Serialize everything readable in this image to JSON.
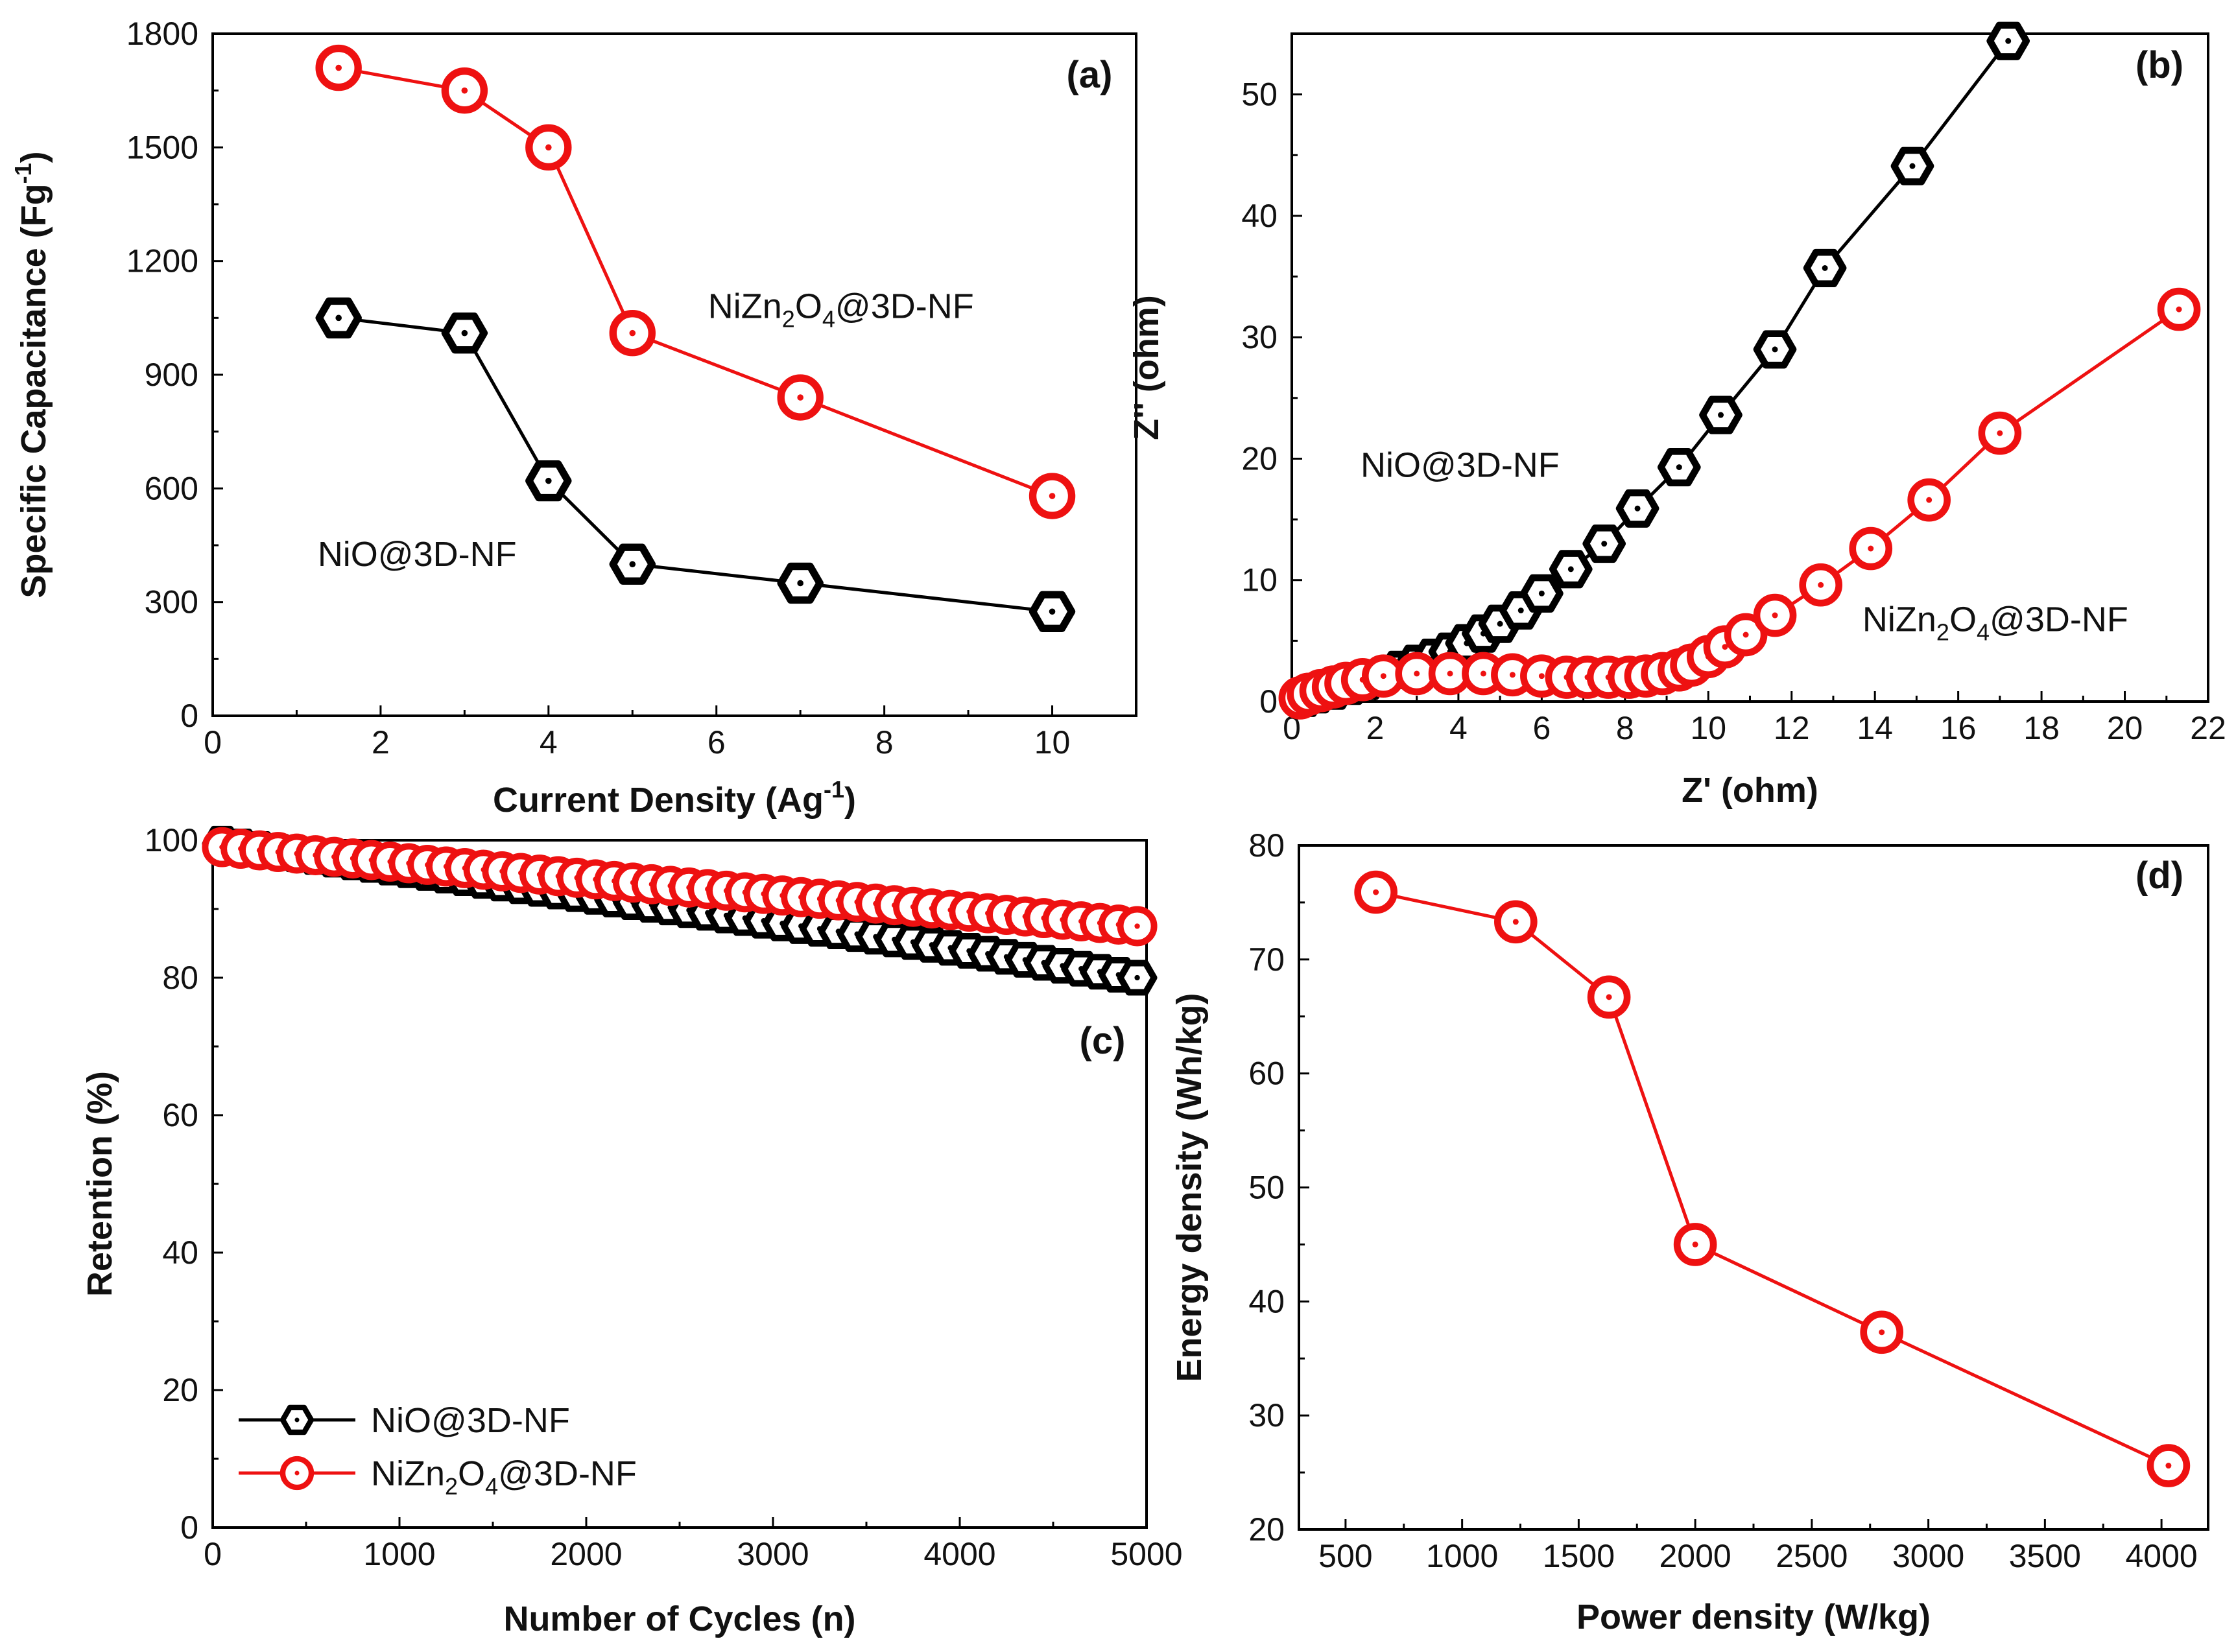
{
  "colors": {
    "nio": "#000000",
    "nizn": "#ee1111"
  },
  "chart_data": [
    {
      "id": "a",
      "type": "line",
      "panel_label": "(a)",
      "xlabel": "Current Density (Ag",
      "xlabel_sup": "-1",
      "xlabel_end": ")",
      "ylabel": "Specific Capacitance (Fg",
      "ylabel_sup": "-1",
      "ylabel_end": ")",
      "xlim": [
        0,
        11
      ],
      "ylim": [
        0,
        1800
      ],
      "xticks": [
        0,
        2,
        4,
        6,
        8,
        10
      ],
      "yticks": [
        0,
        300,
        600,
        900,
        1200,
        1500,
        1800
      ],
      "annotations": [
        {
          "parts": [
            "NiZn",
            "2",
            "O",
            "4",
            "@3D-NF"
          ],
          "x": 5.9,
          "y": 1050
        },
        {
          "parts": [
            "NiO@3D-NF"
          ],
          "x": 1.25,
          "y": 395
        }
      ],
      "series": [
        {
          "name": "NiZn2O4@3D-NF",
          "marker": "circle",
          "color": "#ee1111",
          "x": [
            1.5,
            3,
            4,
            5,
            7,
            10
          ],
          "y": [
            1710,
            1650,
            1500,
            1010,
            840,
            580
          ]
        },
        {
          "name": "NiO@3D-NF",
          "marker": "hexagon",
          "color": "#000000",
          "x": [
            1.5,
            3,
            4,
            5,
            7,
            10
          ],
          "y": [
            1050,
            1010,
            620,
            400,
            350,
            275
          ]
        }
      ]
    },
    {
      "id": "b",
      "type": "line",
      "panel_label": "(b)",
      "xlabel": "Z' (ohm)",
      "ylabel": "Z'' (ohm)",
      "xlim": [
        0,
        22
      ],
      "ylim": [
        0,
        55
      ],
      "xticks": [
        0,
        2,
        4,
        6,
        8,
        10,
        12,
        14,
        16,
        18,
        20,
        22
      ],
      "yticks": [
        0,
        10,
        20,
        30,
        40,
        50
      ],
      "annotations": [
        {
          "parts": [
            "NiO@3D-NF"
          ],
          "x": 1.65,
          "y": 18.5
        },
        {
          "parts": [
            "NiZn",
            "2",
            "O",
            "4",
            "@3D-NF"
          ],
          "x": 13.7,
          "y": 5.8
        }
      ],
      "series": [
        {
          "name": "NiO@3D-NF",
          "marker": "hexagon",
          "color": "#000000",
          "x": [
            0.3,
            0.6,
            1.0,
            1.4,
            1.8,
            2.2,
            2.6,
            3.0,
            3.4,
            3.8,
            4.2,
            4.6,
            5.0,
            5.5,
            6.0,
            6.7,
            7.5,
            8.3,
            9.3,
            10.3,
            11.6,
            12.8,
            14.9,
            17.2
          ],
          "y": [
            0.3,
            0.6,
            0.9,
            1.3,
            1.7,
            2.1,
            2.6,
            3.1,
            3.6,
            4.1,
            4.8,
            5.6,
            6.4,
            7.5,
            8.9,
            10.9,
            13.0,
            15.9,
            19.3,
            23.6,
            29.0,
            35.7,
            44.1,
            54.4
          ]
        },
        {
          "name": "NiZn2O4@3D-NF",
          "marker": "circle",
          "color": "#ee1111",
          "x": [
            0.2,
            0.4,
            0.7,
            1.0,
            1.3,
            1.7,
            2.2,
            3.0,
            3.8,
            4.6,
            5.3,
            6.0,
            6.6,
            7.1,
            7.6,
            8.1,
            8.5,
            8.9,
            9.3,
            9.6,
            10.0,
            10.4,
            10.9,
            11.6,
            12.7,
            13.9,
            15.3,
            17.0,
            21.3
          ],
          "y": [
            0.3,
            0.6,
            0.9,
            1.2,
            1.5,
            1.8,
            2.1,
            2.3,
            2.3,
            2.3,
            2.2,
            2.1,
            2.0,
            2.0,
            2.0,
            2.0,
            2.1,
            2.3,
            2.6,
            3.0,
            3.7,
            4.5,
            5.5,
            7.1,
            9.6,
            12.6,
            16.6,
            22.1,
            32.3
          ]
        }
      ]
    },
    {
      "id": "c",
      "type": "line",
      "panel_label": "(c)",
      "xlabel": "Number of Cycles (n)",
      "ylabel": "Retention (%)",
      "xlim": [
        0,
        5000
      ],
      "ylim": [
        0,
        100
      ],
      "xticks": [
        0,
        1000,
        2000,
        3000,
        4000,
        5000
      ],
      "yticks": [
        0,
        20,
        40,
        60,
        80,
        100
      ],
      "legend": {
        "position": "bottom-left",
        "entries": [
          {
            "parts": [
              "NiO@3D-NF"
            ],
            "marker": "hexagon",
            "color": "#000000"
          },
          {
            "parts": [
              "NiZn",
              "2",
              "O",
              "4",
              "@3D-NF"
            ],
            "marker": "circle",
            "color": "#ee1111"
          }
        ]
      },
      "series": [
        {
          "name": "NiO@3D-NF",
          "marker": "hexagon",
          "color": "#000000",
          "x_start": 50,
          "x_step": 100,
          "count": 50,
          "y_start": 99.5,
          "y_end": 80.0,
          "knee_x": 3800,
          "y_knee": 85.0
        },
        {
          "name": "NiZn2O4@3D-NF",
          "marker": "circle",
          "color": "#ee1111",
          "x_start": 50,
          "x_step": 100,
          "count": 50,
          "y_start": 99.0,
          "y_end": 87.5
        }
      ]
    },
    {
      "id": "d",
      "type": "line",
      "panel_label": "(d)",
      "xlabel": "Power density (W/kg)",
      "ylabel": "Energy density (Wh/kg)",
      "xlim": [
        300,
        4200
      ],
      "ylim": [
        20,
        80
      ],
      "xticks": [
        500,
        1000,
        1500,
        2000,
        2500,
        3000,
        3500,
        4000
      ],
      "yticks": [
        20,
        30,
        40,
        50,
        60,
        70,
        80
      ],
      "series": [
        {
          "name": "NiZn2O4@3D-NF",
          "marker": "circle",
          "color": "#ee1111",
          "x": [
            630,
            1230,
            1630,
            2000,
            2800,
            4030
          ],
          "y": [
            75.9,
            73.3,
            66.7,
            45.0,
            37.3,
            25.6
          ]
        }
      ]
    }
  ]
}
